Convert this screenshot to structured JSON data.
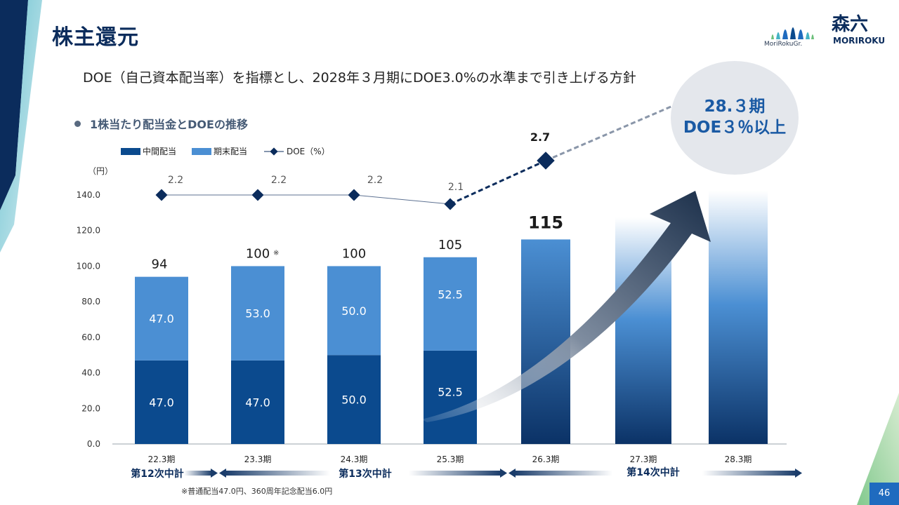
{
  "header": {
    "title": "株主還元",
    "subtitle": "DOE（自己資本配当率）を指標とし、2028年３月期にDOE3.0%の水準まで引き上げる方針",
    "section_label": "1株当たり配当金とDOEの推移"
  },
  "logo": {
    "group_name": "MoriRokuGr.",
    "company_kanji": "森六",
    "company_roman": "MORIROKU"
  },
  "callout": {
    "line1": "28.３期",
    "line2": "DOE３％以上"
  },
  "footer": {
    "note": "※普通配当47.0円、360周年記念配当6.0円",
    "page_number": "46"
  },
  "colors": {
    "interim": "#0b4a8e",
    "year_end": "#4b8fd3",
    "doe_line": "#0b2c5c",
    "title": "#0b2c5c",
    "accent": "#1a5aa4"
  },
  "chart_data": {
    "type": "bar",
    "unit_label": "（円）",
    "categories": [
      "22.3期",
      "23.3期",
      "24.3期",
      "25.3期",
      "26.3期",
      "27.3期",
      "28.3期"
    ],
    "ylim": [
      0,
      140
    ],
    "yticks": [
      "0.0",
      "20.0",
      "40.0",
      "60.0",
      "80.0",
      "100.0",
      "120.0",
      "140.0"
    ],
    "series": [
      {
        "name": "中間配当",
        "values": [
          47.0,
          47.0,
          50.0,
          52.5,
          null,
          null,
          null
        ],
        "labels": [
          "47.0",
          "47.0",
          "50.0",
          "52.5",
          "",
          "",
          ""
        ]
      },
      {
        "name": "期末配当",
        "values": [
          47.0,
          53.0,
          50.0,
          52.5,
          null,
          null,
          null
        ],
        "labels": [
          "47.0",
          "53.0",
          "50.0",
          "52.5",
          "",
          "",
          ""
        ]
      }
    ],
    "forecast_bar": {
      "category": "26.3期",
      "value": 115
    },
    "totals": [
      "94",
      "100",
      "100",
      "105",
      "115",
      "",
      ""
    ],
    "total_note_marker": "※",
    "doe": {
      "name": "DOE（%）",
      "values": [
        2.2,
        2.2,
        2.2,
        2.1,
        2.7
      ],
      "labels": [
        "2.2",
        "2.2",
        "2.2",
        "2.1",
        "2.7"
      ]
    },
    "plans": [
      {
        "label": "第12次中計",
        "span": "22.3期"
      },
      {
        "label": "第13次中計",
        "span": "23.3期–25.3期"
      },
      {
        "label": "第14次中計",
        "span": "26.3期–28.3期"
      }
    ]
  }
}
